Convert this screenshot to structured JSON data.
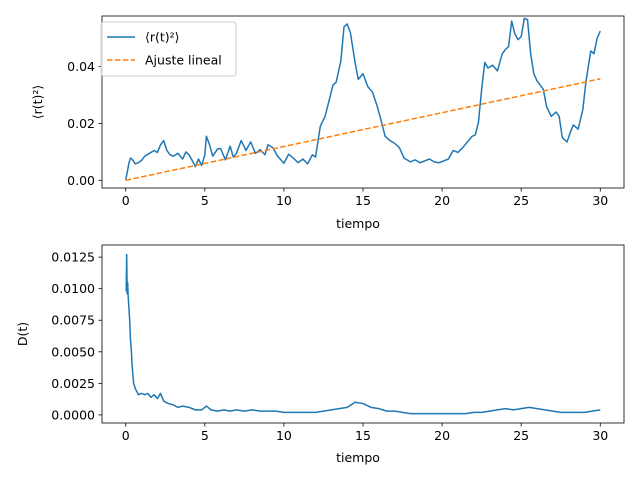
{
  "chart_data": [
    {
      "type": "line",
      "xlabel": "tiempo",
      "ylabel": "⟨r(t)²⟩",
      "xlim": [
        -1.5,
        31.5
      ],
      "ylim": [
        -0.0027,
        0.0578
      ],
      "xticks": [
        0,
        5,
        10,
        15,
        20,
        25,
        30
      ],
      "xtick_labels": [
        "0",
        "5",
        "10",
        "15",
        "20",
        "25",
        "30"
      ],
      "yticks": [
        0.0,
        0.02,
        0.04
      ],
      "ytick_labels": [
        "0.00",
        "0.02",
        "0.04"
      ],
      "legend_position": "top-left",
      "series": [
        {
          "name": "⟨r(t)²⟩",
          "color": "#1f77b4",
          "style": "solid",
          "x": [
            0,
            0.1,
            0.2,
            0.3,
            0.4,
            0.6,
            0.8,
            1.0,
            1.2,
            1.5,
            1.8,
            2.0,
            2.2,
            2.4,
            2.6,
            2.8,
            3.0,
            3.3,
            3.6,
            3.8,
            4.0,
            4.2,
            4.4,
            4.6,
            4.8,
            5.0,
            5.1,
            5.3,
            5.5,
            5.8,
            6.0,
            6.3,
            6.6,
            6.8,
            7.0,
            7.3,
            7.6,
            7.9,
            8.2,
            8.5,
            8.8,
            9.0,
            9.3,
            9.6,
            10.0,
            10.3,
            10.6,
            10.9,
            11.2,
            11.5,
            11.8,
            12.0,
            12.3,
            12.6,
            12.9,
            13.1,
            13.3,
            13.6,
            13.8,
            14.0,
            14.2,
            14.5,
            14.7,
            15.0,
            15.3,
            15.6,
            15.9,
            16.1,
            16.4,
            16.7,
            17.0,
            17.3,
            17.6,
            18.0,
            18.3,
            18.6,
            18.9,
            19.2,
            19.5,
            19.8,
            20.1,
            20.4,
            20.7,
            21.0,
            21.3,
            21.6,
            21.9,
            22.1,
            22.3,
            22.5,
            22.7,
            22.9,
            23.2,
            23.5,
            23.8,
            24.0,
            24.2,
            24.4,
            24.6,
            24.8,
            25.0,
            25.2,
            25.4,
            25.6,
            25.8,
            26.0,
            26.2,
            26.4,
            26.6,
            26.9,
            27.2,
            27.4,
            27.6,
            27.9,
            28.1,
            28.3,
            28.6,
            28.9,
            29.1,
            29.4,
            29.6,
            29.8,
            30.0
          ],
          "y": [
            0.0002,
            0.003,
            0.006,
            0.0078,
            0.0075,
            0.0058,
            0.0062,
            0.007,
            0.0085,
            0.0095,
            0.0105,
            0.0098,
            0.0125,
            0.014,
            0.0105,
            0.009,
            0.0085,
            0.0095,
            0.0075,
            0.01,
            0.009,
            0.007,
            0.0048,
            0.0075,
            0.0052,
            0.009,
            0.0155,
            0.0125,
            0.0085,
            0.011,
            0.0112,
            0.0072,
            0.012,
            0.0082,
            0.0095,
            0.014,
            0.0105,
            0.0135,
            0.0095,
            0.0108,
            0.009,
            0.0125,
            0.0115,
            0.0085,
            0.006,
            0.0092,
            0.0078,
            0.0062,
            0.0075,
            0.0058,
            0.009,
            0.0082,
            0.019,
            0.0225,
            0.029,
            0.0335,
            0.0345,
            0.042,
            0.054,
            0.055,
            0.052,
            0.0415,
            0.0355,
            0.0375,
            0.033,
            0.031,
            0.026,
            0.022,
            0.0155,
            0.014,
            0.013,
            0.0115,
            0.0078,
            0.0065,
            0.0072,
            0.0062,
            0.0068,
            0.0075,
            0.0065,
            0.0062,
            0.0068,
            0.0075,
            0.0105,
            0.0098,
            0.0115,
            0.0135,
            0.0155,
            0.016,
            0.0205,
            0.032,
            0.0415,
            0.0395,
            0.0405,
            0.0385,
            0.0445,
            0.046,
            0.047,
            0.056,
            0.0515,
            0.0495,
            0.0505,
            0.057,
            0.0565,
            0.0445,
            0.0375,
            0.035,
            0.0335,
            0.032,
            0.026,
            0.0225,
            0.024,
            0.0225,
            0.015,
            0.0135,
            0.0168,
            0.0195,
            0.018,
            0.025,
            0.035,
            0.0455,
            0.0445,
            0.05,
            0.0525
          ]
        },
        {
          "name": "Ajuste lineal",
          "color": "#ff7f0e",
          "style": "dashed",
          "x": [
            0,
            30
          ],
          "y": [
            0.0,
            0.0357
          ]
        }
      ]
    },
    {
      "type": "line",
      "xlabel": "tiempo",
      "ylabel": "D(t)",
      "xlim": [
        -1.5,
        31.5
      ],
      "ylim": [
        -0.00064,
        0.01346
      ],
      "xticks": [
        0,
        5,
        10,
        15,
        20,
        25,
        30
      ],
      "xtick_labels": [
        "0",
        "5",
        "10",
        "15",
        "20",
        "25",
        "30"
      ],
      "yticks": [
        0.0,
        0.0025,
        0.005,
        0.0075,
        0.01,
        0.0125
      ],
      "ytick_labels": [
        "0.0000",
        "0.0025",
        "0.0050",
        "0.0075",
        "0.0100",
        "0.0125"
      ],
      "series": [
        {
          "name": "D(t)",
          "color": "#1f77b4",
          "style": "solid",
          "x": [
            0.03,
            0.06,
            0.09,
            0.12,
            0.15,
            0.2,
            0.25,
            0.3,
            0.35,
            0.4,
            0.5,
            0.6,
            0.8,
            1.0,
            1.2,
            1.4,
            1.6,
            1.8,
            2.0,
            2.2,
            2.4,
            2.7,
            3.0,
            3.3,
            3.6,
            4.0,
            4.4,
            4.8,
            5.1,
            5.4,
            5.8,
            6.2,
            6.6,
            7.0,
            7.5,
            8.0,
            8.5,
            9.0,
            9.5,
            10.0,
            10.5,
            11.0,
            11.5,
            12.0,
            12.5,
            13.0,
            13.5,
            14.0,
            14.5,
            15.0,
            15.5,
            16.0,
            16.5,
            17.0,
            17.5,
            18.0,
            18.5,
            19.0,
            19.5,
            20.0,
            20.5,
            21.0,
            21.5,
            22.0,
            22.5,
            23.0,
            23.5,
            24.0,
            24.5,
            25.0,
            25.5,
            26.0,
            26.5,
            27.0,
            27.5,
            28.0,
            28.5,
            29.0,
            29.5,
            30.0
          ],
          "y": [
            0.0098,
            0.0127,
            0.0096,
            0.0105,
            0.0095,
            0.0085,
            0.0075,
            0.006,
            0.0052,
            0.004,
            0.0025,
            0.0021,
            0.0016,
            0.0017,
            0.0016,
            0.0017,
            0.0014,
            0.0016,
            0.0013,
            0.0017,
            0.0011,
            0.0009,
            0.0008,
            0.0006,
            0.0007,
            0.0006,
            0.0004,
            0.0004,
            0.0007,
            0.0004,
            0.0003,
            0.0004,
            0.0003,
            0.0004,
            0.0003,
            0.0004,
            0.0003,
            0.0003,
            0.0003,
            0.0002,
            0.0002,
            0.0002,
            0.0002,
            0.0002,
            0.0003,
            0.0004,
            0.0005,
            0.0006,
            0.001,
            0.0009,
            0.0006,
            0.0005,
            0.0003,
            0.0003,
            0.0002,
            0.0001,
            0.0001,
            0.0001,
            0.0001,
            0.0001,
            0.0001,
            0.0001,
            0.0001,
            0.0002,
            0.0002,
            0.0003,
            0.0004,
            0.0005,
            0.0004,
            0.0005,
            0.0006,
            0.0005,
            0.0004,
            0.0003,
            0.0002,
            0.0002,
            0.0002,
            0.0002,
            0.0003,
            0.0004
          ]
        }
      ]
    }
  ]
}
